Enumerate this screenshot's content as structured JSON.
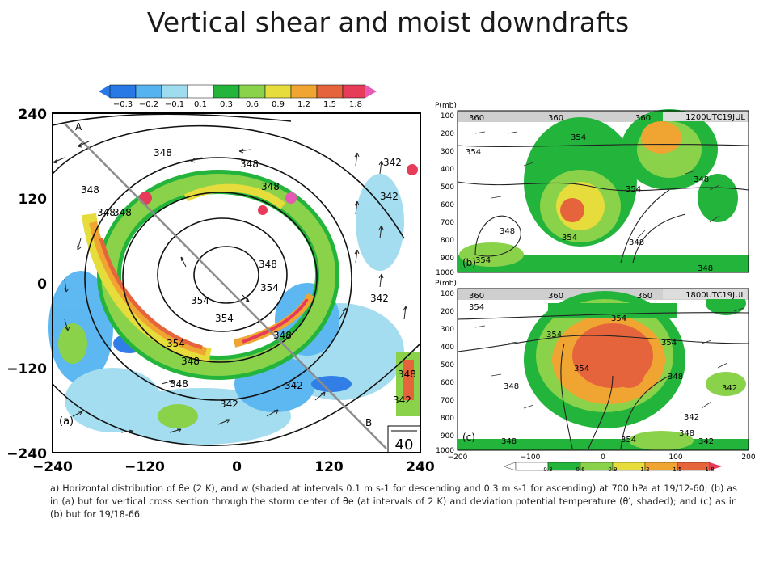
{
  "title": "Vertical shear and moist downdrafts",
  "panel_a": {
    "colorbar_labels": [
      "−0.3",
      "−0.2",
      "−0.1",
      "0.1",
      "0.3",
      "0.6",
      "0.9",
      "1.2",
      "1.5",
      "1.8"
    ],
    "y_ticks": [
      "240",
      "120",
      "0",
      "−120",
      "−240"
    ],
    "x_ticks": [
      "−240",
      "−120",
      "0",
      "120",
      "240"
    ],
    "label": "(a)",
    "point_a": "A",
    "point_b": "B",
    "vector_scale": "40",
    "contour_labels": [
      "348",
      "348",
      "348",
      "348",
      "342",
      "342",
      "348",
      "354",
      "354",
      "354",
      "354",
      "348",
      "348",
      "348",
      "342",
      "342",
      "342",
      "348",
      "348",
      "342",
      "348"
    ]
  },
  "panel_b": {
    "axis_title": "P(mb)",
    "time_label": "1200UTC19JUL",
    "label": "(b)",
    "p_ticks": [
      "100",
      "200",
      "300",
      "400",
      "500",
      "600",
      "700",
      "800",
      "900",
      "1000"
    ],
    "contour_labels": [
      "360",
      "360",
      "360",
      "354",
      "354",
      "348",
      "354",
      "354",
      "348",
      "348",
      "354",
      "348"
    ]
  },
  "panel_c": {
    "axis_title": "P(mb)",
    "time_label": "1800UTC19JUL",
    "label": "(c)",
    "p_ticks": [
      "100",
      "200",
      "300",
      "400",
      "500",
      "600",
      "700",
      "800",
      "900",
      "1000"
    ],
    "x_ticks": [
      "−200",
      "−100",
      "0",
      "100",
      "200"
    ],
    "colorbar_labels": [
      "0.3",
      "0.6",
      "0.9",
      "1.2",
      "1.5",
      "1.8"
    ],
    "contour_labels": [
      "360",
      "360",
      "360",
      "354",
      "354",
      "354",
      "354",
      "354",
      "348",
      "348",
      "342",
      "342",
      "348",
      "354",
      "348",
      "342"
    ]
  },
  "caption": "a) Horizontal distribution of θe (2 K), and w (shaded at intervals 0.1 m s-1 for descending and 0.3 m s-1 for ascending) at 700 hPa at 19/12-60; (b) as in (a) but for vertical cross section through the storm center of θe (at intervals of 2 K) and deviation potential temperature (θ′, shaded); and (c) as in (b) but for 19/18-66.",
  "colors": {
    "neg3": "#2878e6",
    "neg2": "#55b4f0",
    "neg1": "#9fdcef",
    "pos1": "#23b43c",
    "pos3": "#8bd24b",
    "pos6": "#e6dc3c",
    "pos9": "#f0a532",
    "pos12": "#e6643c",
    "pos15": "#e63c5a",
    "pos18": "#e65ab4"
  }
}
